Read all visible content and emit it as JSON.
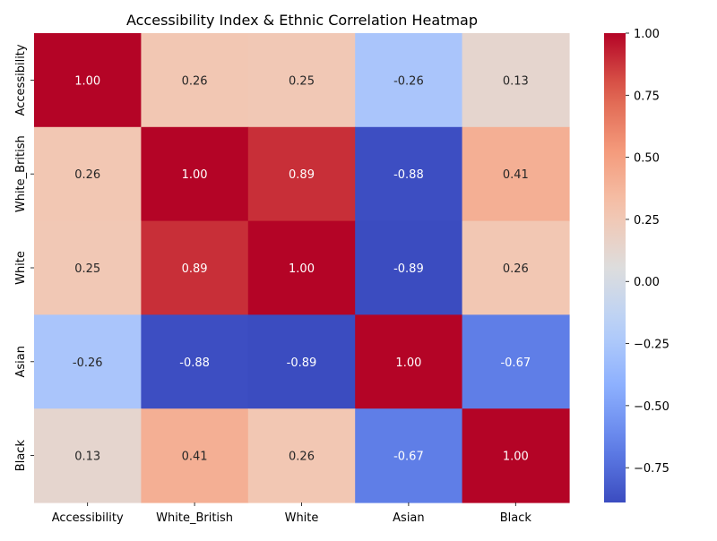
{
  "chart_data": {
    "type": "heatmap",
    "title": "Accessibility Index & Ethnic Correlation Heatmap",
    "x_categories": [
      "Accessibility",
      "White_British",
      "White",
      "Asian",
      "Black"
    ],
    "y_categories": [
      "Accessibility",
      "White_British",
      "White",
      "Asian",
      "Black"
    ],
    "values": [
      [
        1.0,
        0.26,
        0.25,
        -0.26,
        0.13
      ],
      [
        0.26,
        1.0,
        0.89,
        -0.88,
        0.41
      ],
      [
        0.25,
        0.89,
        1.0,
        -0.89,
        0.26
      ],
      [
        -0.26,
        -0.88,
        -0.89,
        1.0,
        -0.67
      ],
      [
        0.13,
        0.41,
        0.26,
        -0.67,
        1.0
      ]
    ],
    "value_labels": [
      [
        "1.00",
        "0.26",
        "0.25",
        "-0.26",
        "0.13"
      ],
      [
        "0.26",
        "1.00",
        "0.89",
        "-0.88",
        "0.41"
      ],
      [
        "0.25",
        "0.89",
        "1.00",
        "-0.89",
        "0.26"
      ],
      [
        "-0.26",
        "-0.88",
        "-0.89",
        "1.00",
        "-0.67"
      ],
      [
        "0.13",
        "0.41",
        "0.26",
        "-0.67",
        "1.00"
      ]
    ],
    "colormap": "coolwarm",
    "colorbar": {
      "range": [
        -0.89,
        1.0
      ],
      "ticks": [
        1.0,
        0.75,
        0.5,
        0.25,
        0.0,
        -0.25,
        -0.5,
        -0.75
      ],
      "tick_labels": [
        "1.00",
        "0.75",
        "0.50",
        "0.25",
        "0.00",
        "−0.25",
        "−0.50",
        "−0.75"
      ]
    }
  }
}
